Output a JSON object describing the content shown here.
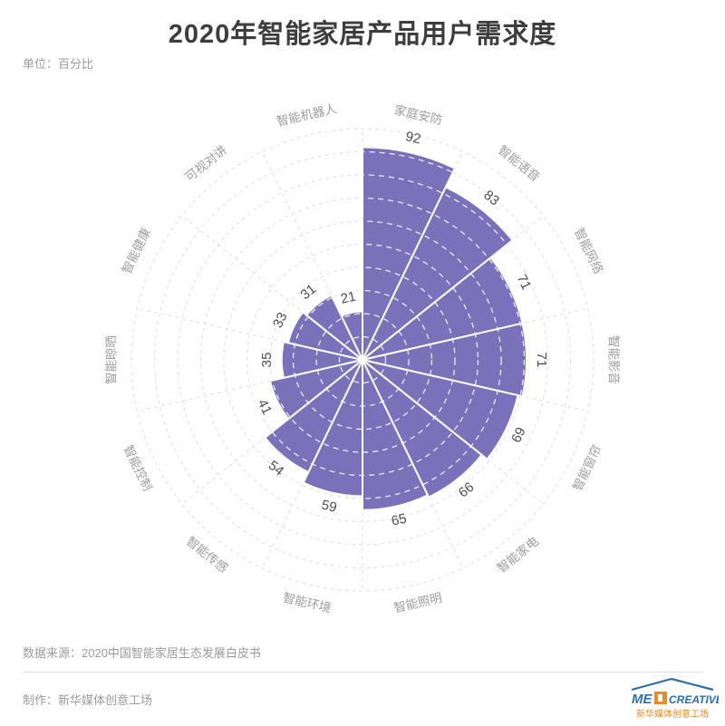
{
  "title": "2020年智能家居产品用户需求度",
  "unit_label": "单位：百分比",
  "source_label": "数据来源：2020中国智能家居生态发展白皮书",
  "made_by_label": "制作：新华媒体创意工场",
  "logo": {
    "text_left": "ME",
    "text_right": "CREATIVE",
    "text_cn": "新华媒体创意工场",
    "blue": "#2f6fae",
    "orange": "#ee8a1e"
  },
  "colors": {
    "title_text": "#3d3d3d",
    "muted_text": "#9a9a9a",
    "divider": "#dddddd"
  },
  "chart_data": {
    "type": "bar",
    "subtype": "polar-rose",
    "title": "2020年智能家居产品用户需求度",
    "unit": "百分比",
    "categories": [
      "家庭安防",
      "智能语音",
      "智能网络",
      "智能影音",
      "智能窗帘",
      "智能家电",
      "智能照明",
      "智能环境",
      "智能传感",
      "智能控制",
      "智能晾晒",
      "智能健康",
      "可视对讲",
      "智能机器人"
    ],
    "values": [
      92,
      83,
      71,
      71,
      69,
      66,
      65,
      59,
      54,
      41,
      35,
      33,
      31,
      21
    ],
    "rlim": [
      0,
      100
    ],
    "ring_step": 10,
    "start_angle_deg": 0,
    "direction": "clockwise",
    "grid": true,
    "legend": "none",
    "colors": {
      "bar": "#7a71ba",
      "bar_border": "#ffffff",
      "grid_line": "#dfdfe6",
      "inner_ring_dash": "#ffffff",
      "value_label": "#4d4d4d",
      "category_label": "#9c9c9c"
    }
  }
}
